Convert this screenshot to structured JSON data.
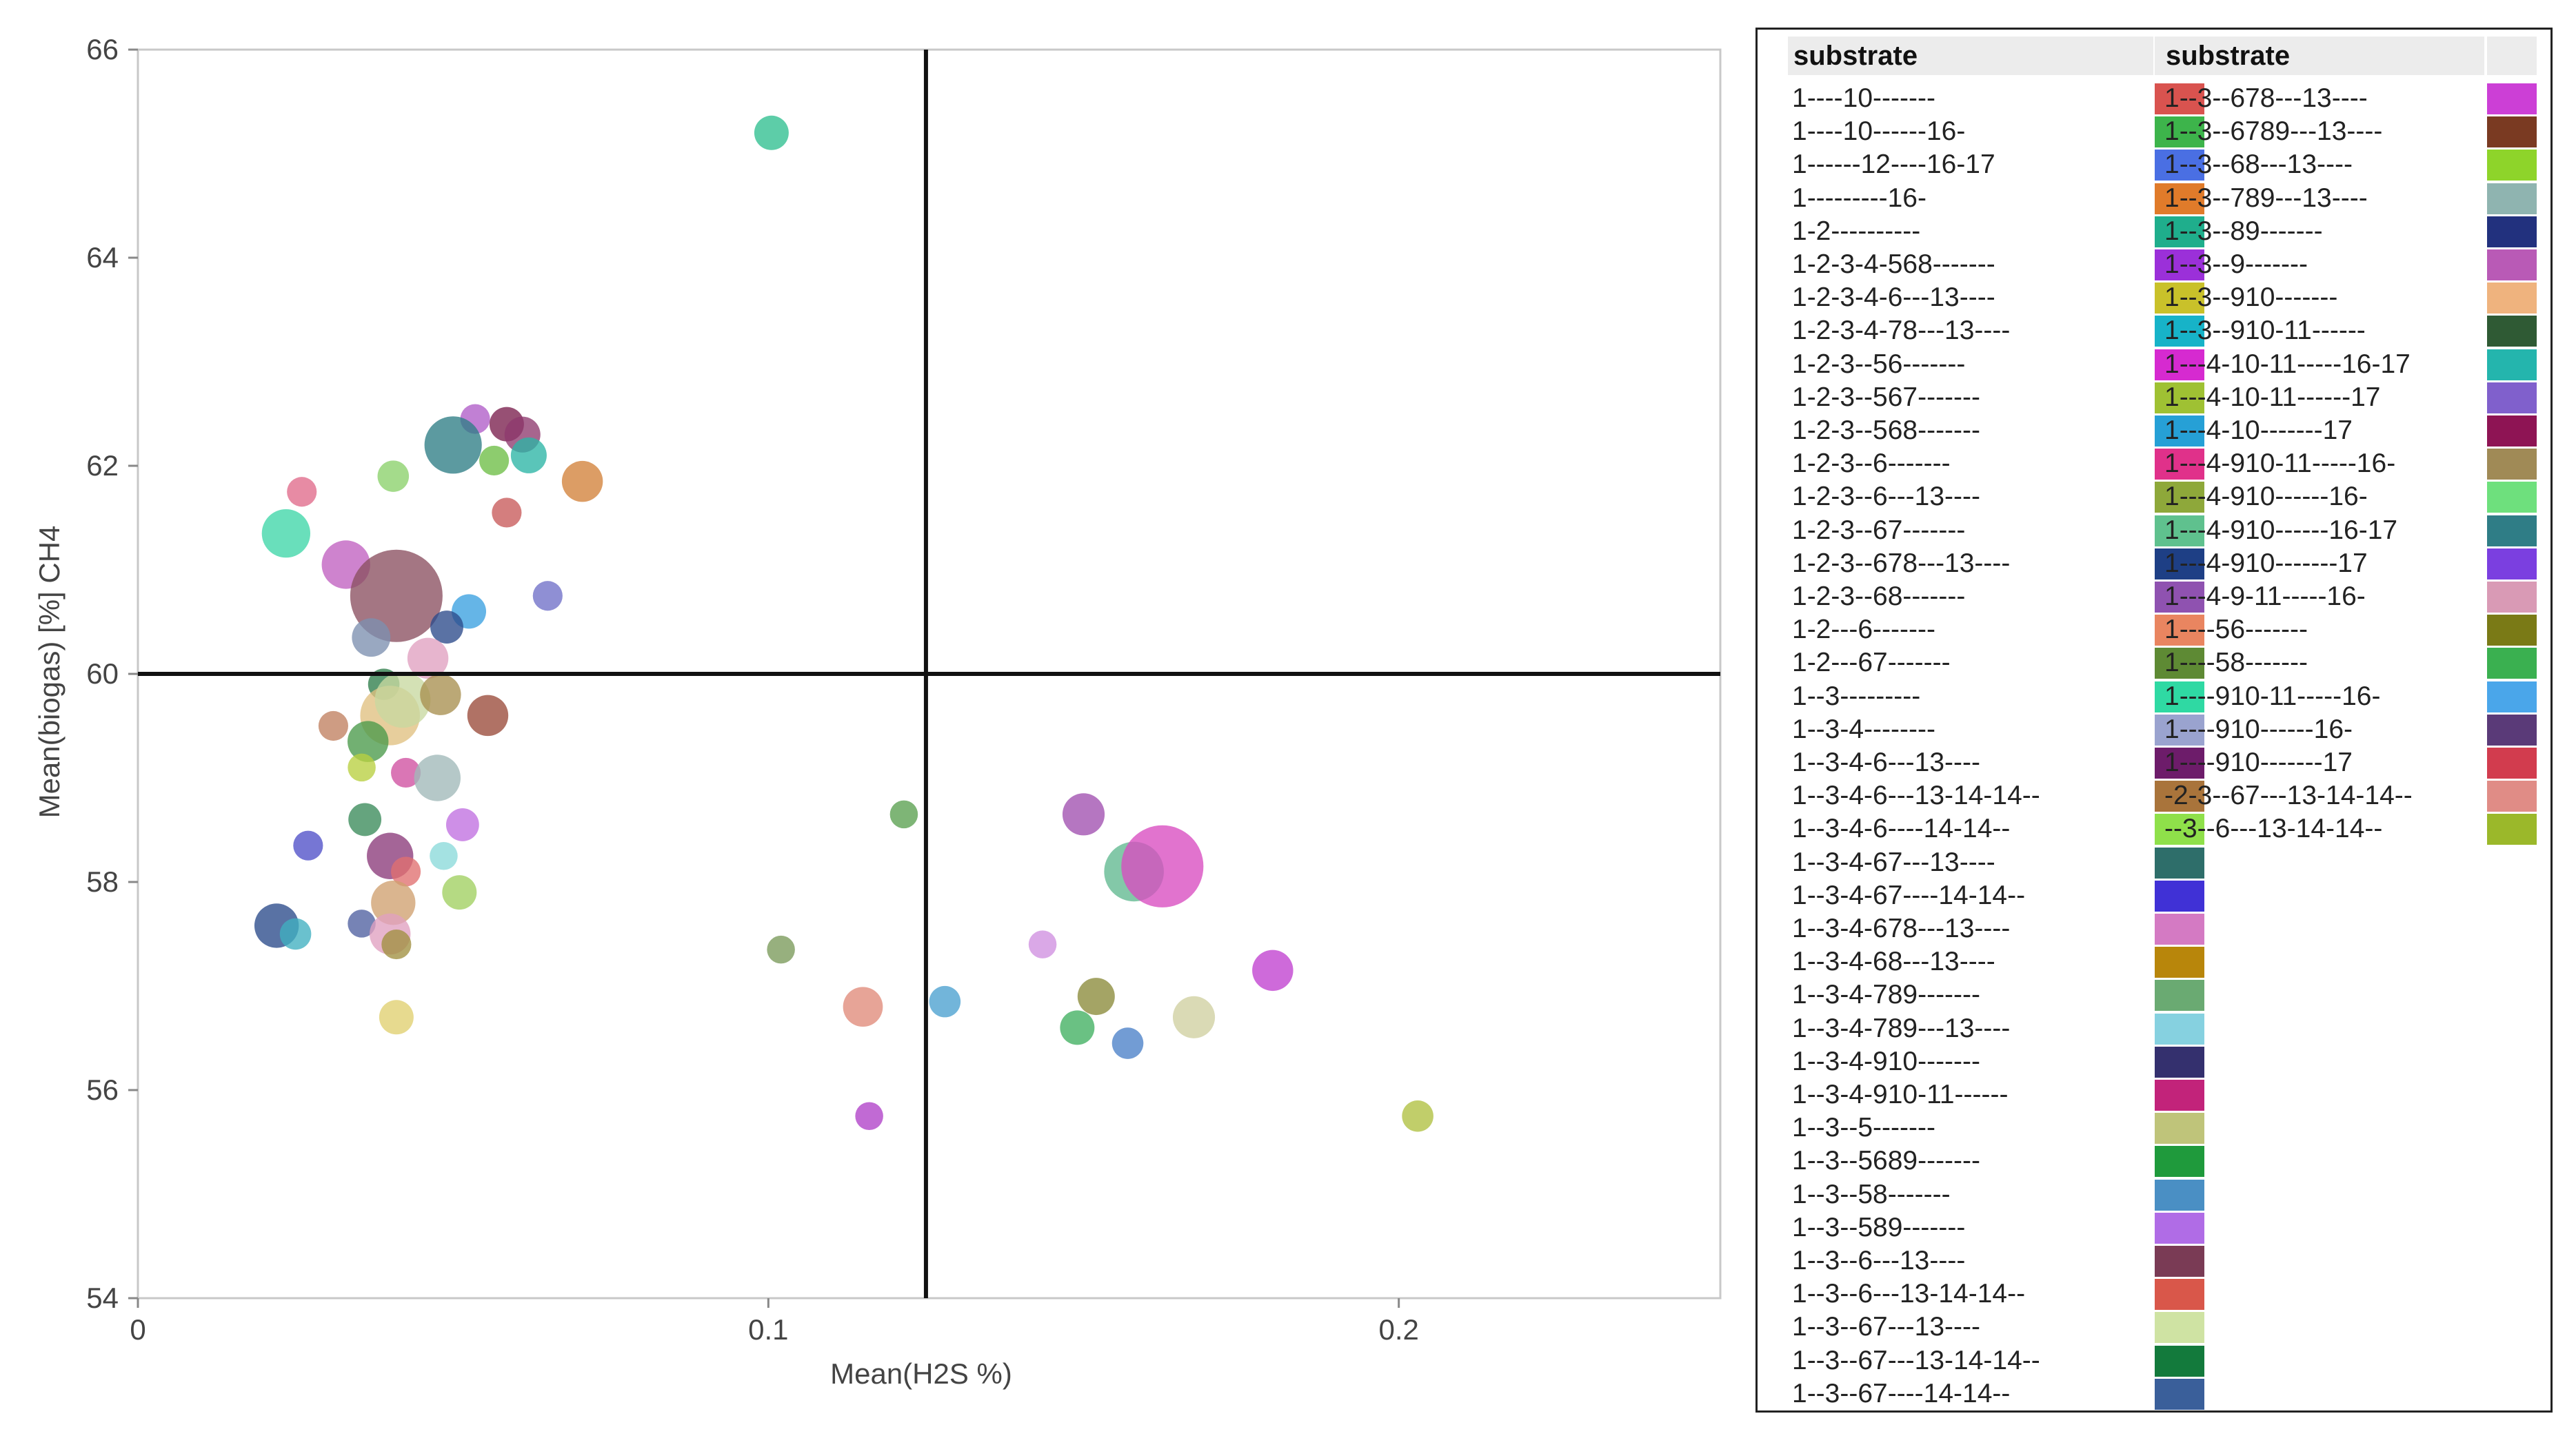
{
  "chart_data": {
    "type": "scatter",
    "xlabel": "Mean(H2S %)",
    "ylabel": "Mean(biogas) [%] CH4",
    "xlim": [
      0,
      0.251
    ],
    "ylim": [
      54,
      66
    ],
    "xticks": [
      0,
      0.1,
      0.2
    ],
    "xtick_labels": [
      "0",
      "0.1",
      "0.2"
    ],
    "yticks": [
      54,
      56,
      58,
      60,
      62,
      64,
      66
    ],
    "ytick_labels": [
      "54",
      "56",
      "58",
      "60",
      "62",
      "64",
      "66"
    ],
    "reference_lines": {
      "x": 0.125,
      "y": 60
    },
    "legend_title": "substrate",
    "legend_position": "right",
    "points": [
      {
        "x": 0.1005,
        "y": 65.2,
        "size": 1.0,
        "color": "#2fbf8f"
      },
      {
        "x": 0.0535,
        "y": 62.45,
        "size": 0.7,
        "color": "#b05cc8"
      },
      {
        "x": 0.05,
        "y": 62.2,
        "size": 3.2,
        "color": "#2e7d85"
      },
      {
        "x": 0.0565,
        "y": 62.05,
        "size": 0.7,
        "color": "#6dbe45"
      },
      {
        "x": 0.0585,
        "y": 62.4,
        "size": 1.0,
        "color": "#7a1f4d"
      },
      {
        "x": 0.061,
        "y": 62.3,
        "size": 1.1,
        "color": "#8e3a6e"
      },
      {
        "x": 0.062,
        "y": 62.1,
        "size": 1.1,
        "color": "#2bb5a5"
      },
      {
        "x": 0.0705,
        "y": 61.85,
        "size": 1.5,
        "color": "#d2813a"
      },
      {
        "x": 0.026,
        "y": 61.75,
        "size": 0.7,
        "color": "#e06a8a"
      },
      {
        "x": 0.0405,
        "y": 61.9,
        "size": 0.8,
        "color": "#8ad16a"
      },
      {
        "x": 0.0585,
        "y": 61.55,
        "size": 0.7,
        "color": "#c85a5a"
      },
      {
        "x": 0.0235,
        "y": 61.35,
        "size": 2.2,
        "color": "#3fd6a8"
      },
      {
        "x": 0.033,
        "y": 61.05,
        "size": 2.2,
        "color": "#c060c0"
      },
      {
        "x": 0.041,
        "y": 60.75,
        "size": 9.0,
        "color": "#8a5060"
      },
      {
        "x": 0.065,
        "y": 60.75,
        "size": 0.7,
        "color": "#7070c8"
      },
      {
        "x": 0.0525,
        "y": 60.6,
        "size": 1.0,
        "color": "#3aa0e0"
      },
      {
        "x": 0.049,
        "y": 60.45,
        "size": 0.9,
        "color": "#2b4a8a"
      },
      {
        "x": 0.037,
        "y": 60.35,
        "size": 1.3,
        "color": "#7c8fb0"
      },
      {
        "x": 0.046,
        "y": 60.15,
        "size": 1.5,
        "color": "#e0a0c0"
      },
      {
        "x": 0.039,
        "y": 59.9,
        "size": 0.8,
        "color": "#2e7d4a"
      },
      {
        "x": 0.04,
        "y": 59.6,
        "size": 3.5,
        "color": "#e0c080"
      },
      {
        "x": 0.042,
        "y": 59.75,
        "size": 3.0,
        "color": "#c8d8a0"
      },
      {
        "x": 0.048,
        "y": 59.8,
        "size": 1.5,
        "color": "#a89050"
      },
      {
        "x": 0.0555,
        "y": 59.6,
        "size": 1.5,
        "color": "#9a4a3a"
      },
      {
        "x": 0.031,
        "y": 59.5,
        "size": 0.7,
        "color": "#c08060"
      },
      {
        "x": 0.0365,
        "y": 59.35,
        "size": 1.5,
        "color": "#4a9a4a"
      },
      {
        "x": 0.0355,
        "y": 59.1,
        "size": 0.6,
        "color": "#b8d040"
      },
      {
        "x": 0.0425,
        "y": 59.05,
        "size": 0.7,
        "color": "#d050a0"
      },
      {
        "x": 0.0475,
        "y": 59.0,
        "size": 2.0,
        "color": "#a0b8b8"
      },
      {
        "x": 0.1215,
        "y": 58.65,
        "size": 0.6,
        "color": "#5aa050"
      },
      {
        "x": 0.15,
        "y": 58.65,
        "size": 1.6,
        "color": "#a050b0"
      },
      {
        "x": 0.036,
        "y": 58.6,
        "size": 0.9,
        "color": "#3a8a5a"
      },
      {
        "x": 0.0515,
        "y": 58.55,
        "size": 0.9,
        "color": "#c070e0"
      },
      {
        "x": 0.027,
        "y": 58.35,
        "size": 0.7,
        "color": "#5050c8"
      },
      {
        "x": 0.04,
        "y": 58.25,
        "size": 2.0,
        "color": "#8a3a7a"
      },
      {
        "x": 0.0485,
        "y": 58.25,
        "size": 0.6,
        "color": "#8adada"
      },
      {
        "x": 0.0425,
        "y": 58.1,
        "size": 0.7,
        "color": "#e07070"
      },
      {
        "x": 0.158,
        "y": 58.1,
        "size": 3.5,
        "color": "#60b890"
      },
      {
        "x": 0.1625,
        "y": 58.15,
        "size": 7.0,
        "color": "#d84cc0"
      },
      {
        "x": 0.051,
        "y": 57.9,
        "size": 1.0,
        "color": "#a0d060"
      },
      {
        "x": 0.0405,
        "y": 57.8,
        "size": 1.8,
        "color": "#d0a070"
      },
      {
        "x": 0.022,
        "y": 57.58,
        "size": 1.8,
        "color": "#2a4a8a"
      },
      {
        "x": 0.025,
        "y": 57.5,
        "size": 0.8,
        "color": "#40b0c0"
      },
      {
        "x": 0.0355,
        "y": 57.6,
        "size": 0.6,
        "color": "#5060a0"
      },
      {
        "x": 0.04,
        "y": 57.5,
        "size": 1.5,
        "color": "#e0a0c0"
      },
      {
        "x": 0.041,
        "y": 57.4,
        "size": 0.7,
        "color": "#a09040"
      },
      {
        "x": 0.102,
        "y": 57.35,
        "size": 0.6,
        "color": "#7a9a5a"
      },
      {
        "x": 0.1435,
        "y": 57.4,
        "size": 0.6,
        "color": "#d090e0"
      },
      {
        "x": 0.18,
        "y": 57.15,
        "size": 1.5,
        "color": "#c040d0"
      },
      {
        "x": 0.152,
        "y": 56.9,
        "size": 1.2,
        "color": "#8a8a3a"
      },
      {
        "x": 0.115,
        "y": 56.8,
        "size": 1.4,
        "color": "#e08a7a"
      },
      {
        "x": 0.128,
        "y": 56.85,
        "size": 0.8,
        "color": "#4aa0d0"
      },
      {
        "x": 0.1675,
        "y": 56.7,
        "size": 1.6,
        "color": "#d0d0a0"
      },
      {
        "x": 0.041,
        "y": 56.7,
        "size": 1.0,
        "color": "#e0d070"
      },
      {
        "x": 0.149,
        "y": 56.6,
        "size": 1.0,
        "color": "#40b060"
      },
      {
        "x": 0.157,
        "y": 56.45,
        "size": 0.8,
        "color": "#4a80c8"
      },
      {
        "x": 0.116,
        "y": 55.75,
        "size": 0.6,
        "color": "#b040c8"
      },
      {
        "x": 0.203,
        "y": 55.75,
        "size": 0.8,
        "color": "#b0c040"
      }
    ]
  },
  "legend": {
    "title": "substrate",
    "columns": [
      [
        {
          "label": "1----10-------",
          "color": "#d9534f"
        },
        {
          "label": "1----10------16-",
          "color": "#3db44b"
        },
        {
          "label": "1------12----16-17",
          "color": "#4a6fe3"
        },
        {
          "label": "1---------16-",
          "color": "#e07b2a"
        },
        {
          "label": "1-2----------",
          "color": "#1fae8c"
        },
        {
          "label": "1-2-3-4-568-------",
          "color": "#9b30d9"
        },
        {
          "label": "1-2-3-4-6---13----",
          "color": "#c9c12a"
        },
        {
          "label": "1-2-3-4-78---13----",
          "color": "#17b3c8"
        },
        {
          "label": "1-2-3--56-------",
          "color": "#d62ad0"
        },
        {
          "label": "1-2-3--567-------",
          "color": "#9fc133"
        },
        {
          "label": "1-2-3--568-------",
          "color": "#26a0d6"
        },
        {
          "label": "1-2-3--6-------",
          "color": "#e0318a"
        },
        {
          "label": "1-2-3--6---13----",
          "color": "#8ea83a"
        },
        {
          "label": "1-2-3--67-------",
          "color": "#5fc18e"
        },
        {
          "label": "1-2-3--678---13----",
          "color": "#1e3f85"
        },
        {
          "label": "1-2-3--68-------",
          "color": "#8f52b0"
        },
        {
          "label": "1-2---6-------",
          "color": "#e98560"
        },
        {
          "label": "1-2---67-------",
          "color": "#5e8a34"
        },
        {
          "label": "1--3---------",
          "color": "#2fd9a3"
        },
        {
          "label": "1--3-4--------",
          "color": "#9aa3cf"
        },
        {
          "label": "1--3-4-6---13----",
          "color": "#6d1c6a"
        },
        {
          "label": "1--3-4-6---13-14-14--",
          "color": "#a9743b"
        },
        {
          "label": "1--3-4-6----14-14--",
          "color": "#8fe04a"
        },
        {
          "label": "1--3-4-67---13----",
          "color": "#2e6e6a"
        },
        {
          "label": "1--3-4-67----14-14--",
          "color": "#4031d6"
        },
        {
          "label": "1--3-4-678---13----",
          "color": "#d47ac3"
        },
        {
          "label": "1--3-4-68---13----",
          "color": "#b8860b"
        },
        {
          "label": "1--3-4-789-------",
          "color": "#6aaa72"
        },
        {
          "label": "1--3-4-789---13----",
          "color": "#86d1e0"
        },
        {
          "label": "1--3-4-910-------",
          "color": "#34306e"
        },
        {
          "label": "1--3-4-910-11------",
          "color": "#c2237a"
        },
        {
          "label": "1--3--5-------",
          "color": "#bfc47a"
        },
        {
          "label": "1--3--5689-------",
          "color": "#1f9a3c"
        },
        {
          "label": "1--3--58-------",
          "color": "#4a8fc4"
        },
        {
          "label": "1--3--589-------",
          "color": "#b06ce6"
        },
        {
          "label": "1--3--6---13----",
          "color": "#7a3b55"
        },
        {
          "label": "1--3--6---13-14-14--",
          "color": "#d9574a"
        },
        {
          "label": "1--3--67---13----",
          "color": "#cfe3a3"
        },
        {
          "label": "1--3--67---13-14-14--",
          "color": "#137a3c"
        },
        {
          "label": "1--3--67----14-14--",
          "color": "#3a5f9a"
        }
      ],
      [
        {
          "label": "1--3--678---13----",
          "color": "#cc3fd6"
        },
        {
          "label": "1--3--6789---13----",
          "color": "#7a3a22"
        },
        {
          "label": "1--3--68---13----",
          "color": "#8ed42a"
        },
        {
          "label": "1--3--789---13----",
          "color": "#8fb4b0"
        },
        {
          "label": "1--3--89-------",
          "color": "#22317e"
        },
        {
          "label": "1--3--9-------",
          "color": "#b95ab6"
        },
        {
          "label": "1--3--910-------",
          "color": "#efb37e"
        },
        {
          "label": "1--3--910-11------",
          "color": "#2f5a34"
        },
        {
          "label": "1---4-10-11-----16-17",
          "color": "#24b5ad"
        },
        {
          "label": "1---4-10-11------17",
          "color": "#8060cc"
        },
        {
          "label": "1---4-10-------17",
          "color": "#8e1454"
        },
        {
          "label": "1---4-910-11-----16-",
          "color": "#a08a56"
        },
        {
          "label": "1---4-910------16-",
          "color": "#6ee07d"
        },
        {
          "label": "1---4-910------16-17",
          "color": "#2f7d86"
        },
        {
          "label": "1---4-910-------17",
          "color": "#7b3fe0"
        },
        {
          "label": "1---4-9-11-----16-",
          "color": "#d99ab5"
        },
        {
          "label": "1----56-------",
          "color": "#7a7a16"
        },
        {
          "label": "1----58-------",
          "color": "#3ab050"
        },
        {
          "label": "1----910-11-----16-",
          "color": "#4aa6ea"
        },
        {
          "label": "1----910------16-",
          "color": "#5a3a78"
        },
        {
          "label": "1----910-------17",
          "color": "#d23c4e"
        },
        {
          "label": "-2-3--67---13-14-14--",
          "color": "#e08c86"
        },
        {
          "label": "--3--6---13-14-14--",
          "color": "#9bb82a"
        }
      ]
    ]
  }
}
